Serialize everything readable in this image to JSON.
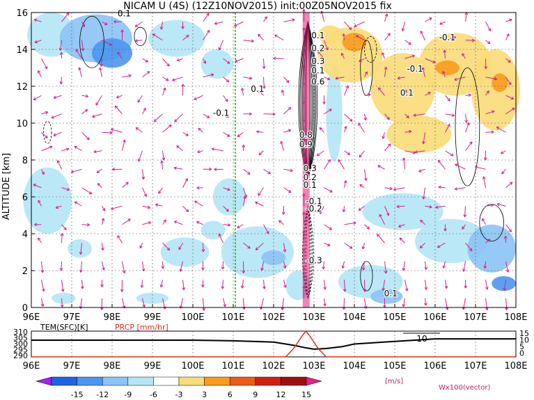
{
  "title": "NICAM U (4S) (12Z10NOV2015) init:00Z05NOV2015 fix",
  "main_panel": {
    "ylabel": "ALTITUDE [km]",
    "x_ticks": [
      "96E",
      "97E",
      "98E",
      "99E",
      "100E",
      "101E",
      "102E",
      "103E",
      "104E",
      "105E",
      "106E",
      "107E",
      "108E"
    ],
    "y_ticks": [
      "0",
      "2",
      "4",
      "6",
      "8",
      "10",
      "12",
      "14",
      "16"
    ],
    "contour_labels": [
      "0.1",
      "0.1",
      "0.2",
      "0.3",
      "0.1",
      "0.6",
      "0.1",
      "0.1",
      "-0.1",
      "0.8",
      "0.9",
      "0.3",
      "0.2",
      "0.1",
      "-0.1",
      "-0.2",
      "-0.3",
      "0.1",
      "-0.1",
      "-0.1"
    ]
  },
  "sub_panel": {
    "tem_label": "TEM(SFC)[K]",
    "prcp_label": "PRCP [mm/hr]",
    "left_ticks": [
      "310",
      "305",
      "300",
      "295",
      "290"
    ],
    "right_ticks": [
      "15",
      "10",
      "5",
      "0"
    ],
    "x_ticks": [
      "96E",
      "97E",
      "98E",
      "99E",
      "100E",
      "101E",
      "102E",
      "103E",
      "104E",
      "105E",
      "106E",
      "107E",
      "108E"
    ],
    "vector_ref_label": "10"
  },
  "colorbar": {
    "ticks": [
      "-15",
      "-12",
      "-9",
      "-6",
      "-3",
      "3",
      "6",
      "9",
      "12",
      "15"
    ],
    "units": "[m/s]",
    "colors": [
      "#a020f0",
      "#1e64e6",
      "#4b96f0",
      "#8cc3f5",
      "#b4e6f5",
      "#ffffff",
      "#fadc78",
      "#fa9b1e",
      "#f05a14",
      "#d21e0f",
      "#a00f0f",
      "#e6208c"
    ]
  },
  "vector_note": "Wx100(vector)",
  "chart_data": {
    "type": "heatmap",
    "title": "NICAM U (4S) (12Z10NOV2015) init:00Z05NOV2015 fix",
    "xlabel": "",
    "ylabel": "ALTITUDE [km]",
    "xlim": [
      96,
      108
    ],
    "ylim": [
      0,
      16
    ],
    "colorbar_levels": [
      -15,
      -12,
      -9,
      -6,
      -3,
      3,
      6,
      9,
      12,
      15
    ],
    "units": "m/s",
    "reference_line_lon": 101,
    "sub_chart": {
      "series": [
        {
          "name": "TEM(SFC)[K]",
          "x": [
            96,
            97,
            98,
            99,
            100,
            101,
            102,
            102.5,
            102.8,
            103,
            103.3,
            103.7,
            104,
            104.5,
            105,
            105.5,
            106,
            107,
            108
          ],
          "values": [
            303,
            303,
            303,
            303,
            303,
            302.5,
            301.5,
            299,
            297,
            296,
            296.5,
            298,
            300,
            301,
            302,
            303,
            304,
            304,
            304
          ]
        },
        {
          "name": "PRCP [mm/hr]",
          "x": [
            96,
            102.3,
            102.5,
            102.7,
            102.8,
            102.9,
            103.1,
            103.3,
            108
          ],
          "values": [
            0,
            0,
            5,
            12,
            15,
            12,
            5,
            0,
            0
          ]
        }
      ],
      "left_ylim": [
        290,
        310
      ],
      "right_ylim": [
        0,
        15
      ]
    }
  }
}
